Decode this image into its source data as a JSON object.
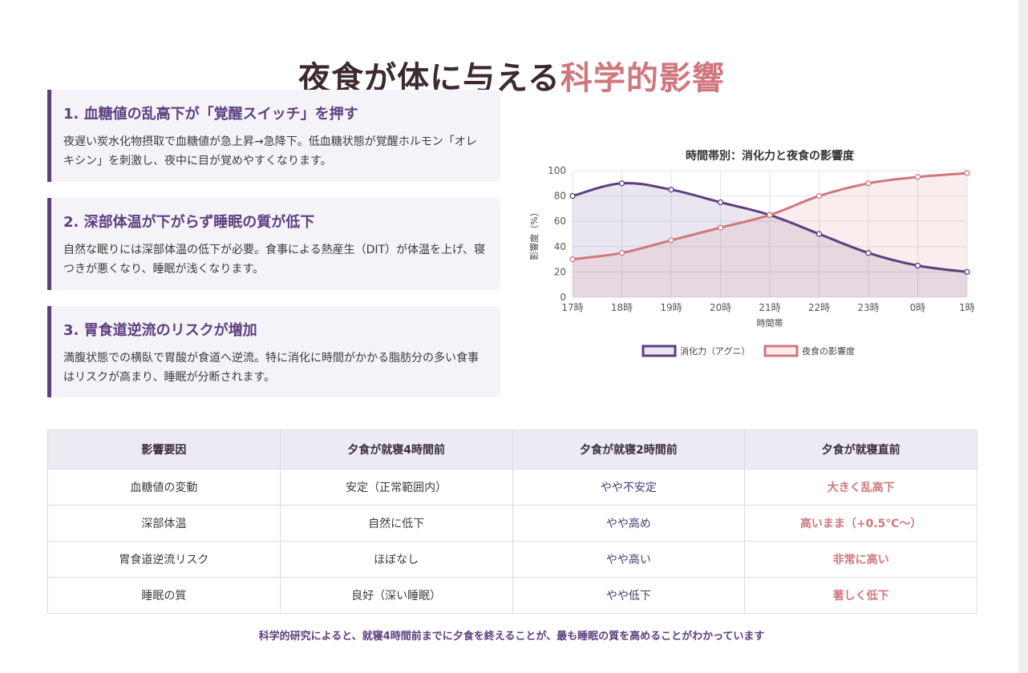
{
  "title": {
    "main": "夜食が体に与える",
    "accent": "科学的影響"
  },
  "cards": [
    {
      "heading": "1. 血糖値の乱高下が「覚醒スイッチ」を押す",
      "body": "夜遅い炭水化物摂取で血糖値が急上昇→急降下。低血糖状態が覚醒ホルモン「オレキシン」を刺激し、夜中に目が覚めやすくなります。"
    },
    {
      "heading": "2. 深部体温が下がらず睡眠の質が低下",
      "body": "自然な眠りには深部体温の低下が必要。食事による熱産生（DIT）が体温を上げ、寝つきが悪くなり、睡眠が浅くなります。"
    },
    {
      "heading": "3. 胃食道逆流のリスクが増加",
      "body": "満腹状態での横臥で胃酸が食道へ逆流。特に消化に時間がかかる脂肪分の多い食事はリスクが高まり、睡眠が分断されます。"
    }
  ],
  "chart_data": {
    "type": "area",
    "title": "時間帯別：消化力と夜食の影響度",
    "xlabel": "時間帯",
    "ylabel": "影響度（%）",
    "categories": [
      "17時",
      "18時",
      "19時",
      "20時",
      "21時",
      "22時",
      "23時",
      "0時",
      "1時"
    ],
    "ylim": [
      0,
      100
    ],
    "yticks": [
      0,
      20,
      40,
      60,
      80,
      100
    ],
    "grid": true,
    "legend_position": "bottom",
    "series": [
      {
        "name": "消化力（アグニ）",
        "values": [
          80,
          90,
          85,
          75,
          65,
          50,
          35,
          25,
          20
        ],
        "color": "#5c3f80"
      },
      {
        "name": "夜食の影響度",
        "values": [
          30,
          35,
          45,
          55,
          65,
          80,
          90,
          95,
          98
        ],
        "color": "#d0777e"
      }
    ]
  },
  "table": {
    "headers": [
      "影響要因",
      "夕食が就寝4時間前",
      "夕食が就寝2時間前",
      "夕食が就寝直前"
    ],
    "rows": [
      [
        "血糖値の変動",
        "安定（正常範囲内）",
        "やや不安定",
        "大きく乱高下"
      ],
      [
        "深部体温",
        "自然に低下",
        "やや高め",
        "高いまま（+0.5℃〜）"
      ],
      [
        "胃食道逆流リスク",
        "ほぼなし",
        "やや高い",
        "非常に高い"
      ],
      [
        "睡眠の質",
        "良好（深い睡眠）",
        "やや低下",
        "著しく低下"
      ]
    ]
  },
  "footnote": "科学的研究によると、就寝4時間前までに夕食を終えることが、最も睡眠の質を高めることがわかっています"
}
